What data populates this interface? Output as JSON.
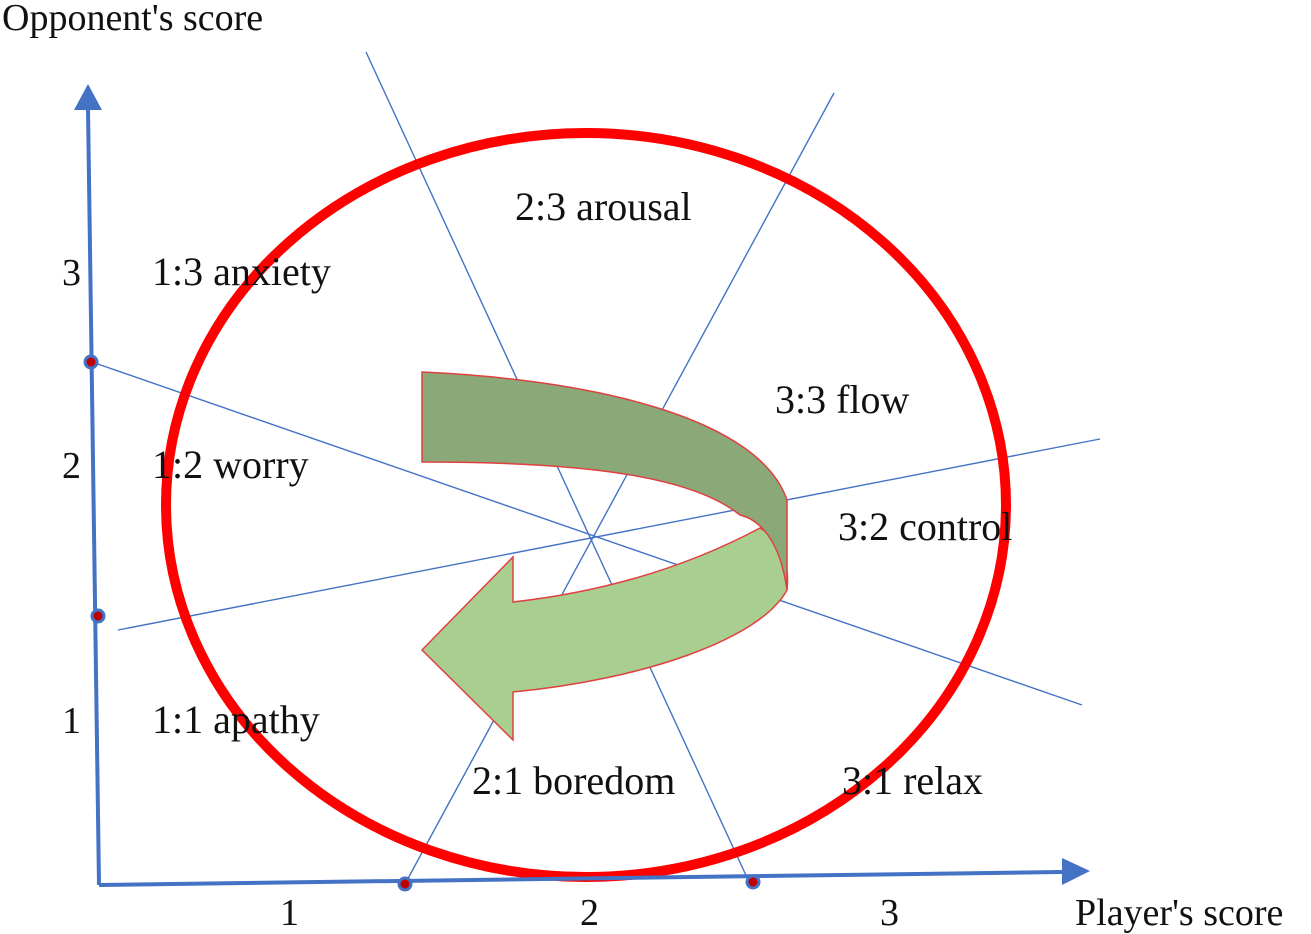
{
  "axes": {
    "y_title": "Opponent's score",
    "x_title": "Player's score",
    "y_ticks": [
      "1",
      "2",
      "3"
    ],
    "x_ticks": [
      "1",
      "2",
      "3"
    ],
    "axis_color": "#4472c4"
  },
  "regions": {
    "anxiety": "1:3 anxiety",
    "worry": "1:2 worry",
    "apathy": "1:1 apathy",
    "arousal": "2:3 arousal",
    "boredom": "2:1 boredom",
    "flow": "3:3 flow",
    "control": "3:2 control",
    "relax": "3:1 relax"
  },
  "colors": {
    "circle": "#ff0000",
    "divider_lines": "#4472c4",
    "marker_fill": "#c00000",
    "arrow_top": "#8aa878",
    "arrow_bottom": "#a9cf90",
    "arrow_outline": "#e04040"
  }
}
